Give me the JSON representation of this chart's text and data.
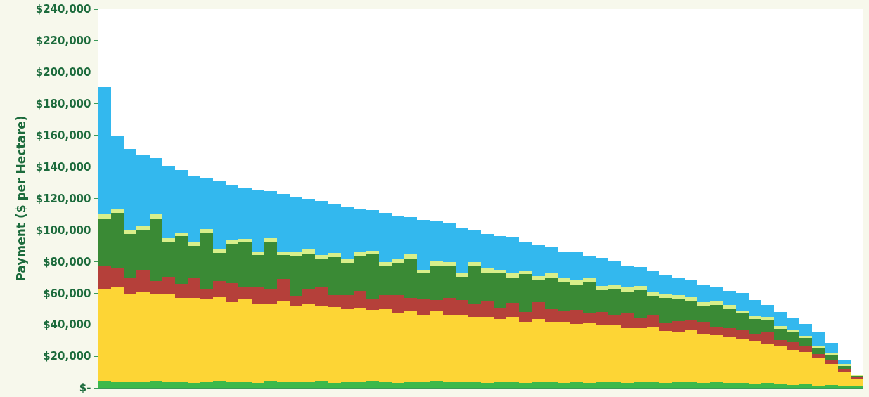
{
  "chart_data": {
    "type": "bar",
    "stacked": true,
    "ylabel": "Payment ($ per Hectare)",
    "categories": [
      null,
      null,
      null,
      null,
      null,
      null,
      null,
      null,
      null,
      null,
      null,
      null,
      null,
      null,
      null,
      null,
      null,
      null,
      null,
      null,
      null,
      null,
      null,
      null,
      null,
      null,
      null,
      null,
      null,
      null,
      null,
      null,
      null,
      null,
      null,
      null,
      null,
      null,
      null,
      null,
      null,
      null,
      null,
      null,
      null,
      null,
      null,
      null,
      null,
      null,
      null,
      null,
      null,
      null,
      null,
      null,
      null,
      null,
      null,
      null
    ],
    "ylim": [
      0,
      240000
    ],
    "yticks": [
      {
        "value": 0,
        "label": "$-"
      },
      {
        "value": 20000,
        "label": "$20,000"
      },
      {
        "value": 40000,
        "label": "$40,000"
      },
      {
        "value": 60000,
        "label": "$60,000"
      },
      {
        "value": 80000,
        "label": "$80,000"
      },
      {
        "value": 100000,
        "label": "$100,000"
      },
      {
        "value": 120000,
        "label": "$120,000"
      },
      {
        "value": 140000,
        "label": "$140,000"
      },
      {
        "value": 160000,
        "label": "$160,000"
      },
      {
        "value": 180000,
        "label": "$180,000"
      },
      {
        "value": 200000,
        "label": "$200,000"
      },
      {
        "value": 220000,
        "label": "$220,000"
      },
      {
        "value": 240000,
        "label": "$240,000"
      }
    ],
    "tick_labels": "y",
    "grid": false,
    "series": [
      {
        "color": "#3cb94a",
        "values": [
          4500,
          4000,
          3500,
          4000,
          4500,
          3500,
          4000,
          3000,
          4000,
          4500,
          3500,
          4000,
          3000,
          4500,
          4000,
          3500,
          4000,
          4500,
          3000,
          4000,
          3500,
          4500,
          4000,
          3000,
          4000,
          3500,
          4500,
          4000,
          3500,
          4000,
          3000,
          3500,
          4000,
          3000,
          3500,
          4000,
          3000,
          3500,
          3000,
          4000,
          3500,
          3000,
          4000,
          3500,
          3000,
          3500,
          4000,
          3000,
          3500,
          3000,
          3000,
          2500,
          3000,
          2500,
          2000,
          2500,
          1500,
          2000,
          1000,
          1500
        ]
      },
      {
        "color": "#fdd535",
        "values": [
          58000,
          60000,
          56000,
          57000,
          55000,
          56000,
          53000,
          54000,
          52000,
          53000,
          51000,
          52000,
          50000,
          49000,
          51000,
          48000,
          49000,
          47000,
          48000,
          46000,
          47000,
          45000,
          46000,
          44000,
          45000,
          43000,
          44000,
          42000,
          43000,
          41000,
          42000,
          40000,
          41000,
          39000,
          40000,
          38000,
          39000,
          37000,
          38000,
          36000,
          36000,
          35000,
          34000,
          35000,
          33000,
          32000,
          33000,
          31000,
          30000,
          29000,
          28000,
          27000,
          25000,
          24000,
          22000,
          20000,
          17000,
          13000,
          9000,
          4000
        ]
      },
      {
        "color": "#b5403a",
        "values": [
          15000,
          12000,
          10000,
          14000,
          8000,
          11000,
          9000,
          13000,
          7000,
          10000,
          12000,
          8000,
          11000,
          9000,
          14000,
          7000,
          10000,
          12000,
          8000,
          9000,
          11000,
          7000,
          9000,
          12000,
          8000,
          10000,
          7000,
          11000,
          9000,
          8000,
          10000,
          7000,
          9000,
          6000,
          11000,
          8000,
          7000,
          9000,
          6000,
          8000,
          7000,
          9000,
          6000,
          8000,
          5000,
          7000,
          6000,
          8000,
          5000,
          6000,
          6000,
          5000,
          7000,
          4000,
          5000,
          4000,
          3000,
          3000,
          2000,
          1000
        ]
      },
      {
        "color": "#3a8a35",
        "values": [
          30000,
          35000,
          28000,
          25000,
          40000,
          22000,
          30000,
          20000,
          35000,
          18000,
          25000,
          28000,
          20000,
          30000,
          15000,
          25000,
          22000,
          18000,
          24000,
          20000,
          22000,
          28000,
          18000,
          20000,
          25000,
          16000,
          22000,
          20000,
          15000,
          24000,
          18000,
          22000,
          16000,
          24000,
          14000,
          20000,
          18000,
          16000,
          20000,
          14000,
          16000,
          14000,
          18000,
          12000,
          16000,
          14000,
          12000,
          10000,
          14000,
          12000,
          10000,
          9000,
          8000,
          7000,
          6000,
          5000,
          4000,
          3000,
          2000,
          1000
        ]
      },
      {
        "color": "#d8ef8a",
        "values": [
          2500,
          2500,
          2500,
          2500,
          2500,
          2500,
          2500,
          2500,
          2500,
          2500,
          2500,
          2500,
          2500,
          2500,
          2500,
          2500,
          2500,
          2500,
          2500,
          2500,
          2500,
          2500,
          2500,
          2500,
          2500,
          2500,
          2500,
          2500,
          2500,
          2500,
          2500,
          2500,
          2500,
          2500,
          2500,
          2500,
          2500,
          2500,
          2500,
          2500,
          2500,
          2500,
          2500,
          2500,
          2500,
          2500,
          2500,
          2500,
          2500,
          2500,
          2000,
          2000,
          2000,
          1500,
          1500,
          1500,
          1000,
          1000,
          1000,
          500
        ]
      },
      {
        "color": "#33b8ee",
        "values": [
          80500,
          46500,
          51500,
          45500,
          35500,
          45500,
          39500,
          41500,
          32500,
          43500,
          34500,
          32500,
          38500,
          29500,
          36500,
          34500,
          32500,
          34500,
          30500,
          33500,
          27500,
          25500,
          31500,
          27500,
          23500,
          31500,
          25500,
          24500,
          28500,
          20500,
          22000,
          21000,
          23000,
          18000,
          20000,
          17000,
          17000,
          18000,
          14000,
          18000,
          15000,
          14000,
          12000,
          13000,
          12000,
          11000,
          11000,
          11000,
          9000,
          9000,
          11000,
          10000,
          7500,
          9000,
          7500,
          7500,
          8500,
          6500,
          3000,
          500
        ]
      }
    ]
  }
}
